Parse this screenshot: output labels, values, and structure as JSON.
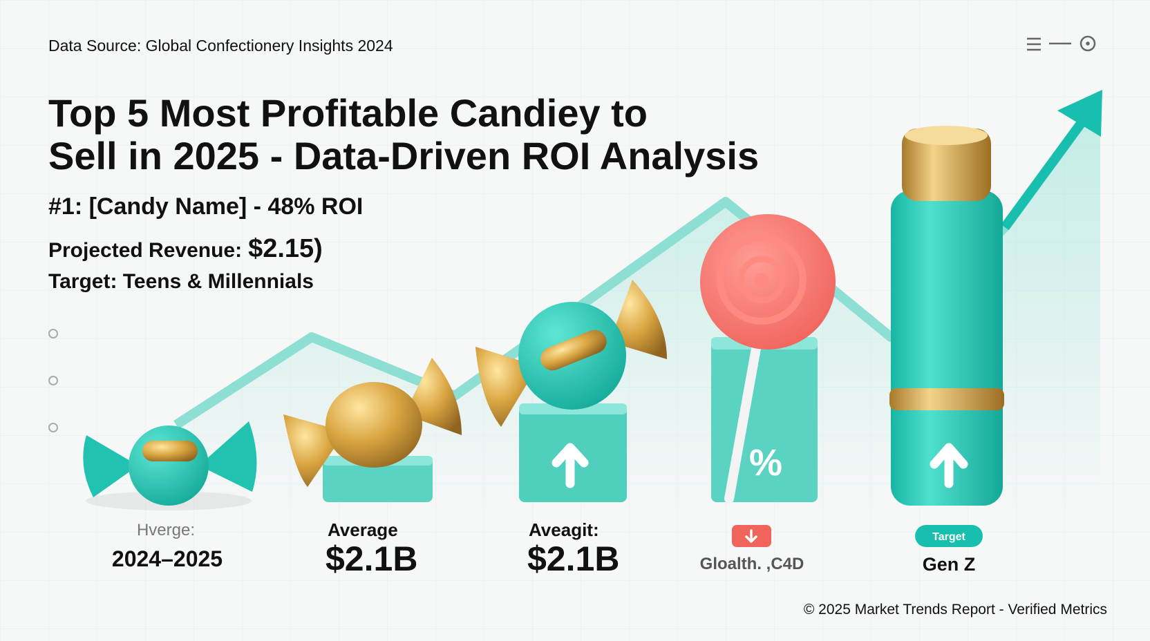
{
  "header": {
    "source": "Data Source: Global Confectionery Insights 2024",
    "title_lines": [
      "Top 5 Most Profitable Candiey to",
      "Sell in 2025 - Data-Driven ROI Analysis"
    ]
  },
  "highlight": {
    "rank": "#1: [Candy Name] - 48% ROI",
    "revenue_label": "Projected Revenue:",
    "revenue_value": "$2.15)",
    "target": "Target: Teens & Millennials"
  },
  "items": [
    {
      "label": "Hverge:",
      "value": "2024–2025"
    },
    {
      "label": "Average",
      "value": "$2.1B"
    },
    {
      "label": "Aveagit:",
      "value": "$2.1B"
    },
    {
      "value": "Gloalth. ,C4D"
    },
    {
      "badge": "Target",
      "value": "Gen Z"
    }
  ],
  "footer": "© 2025 Market Trends Report - Verified Metrics"
}
